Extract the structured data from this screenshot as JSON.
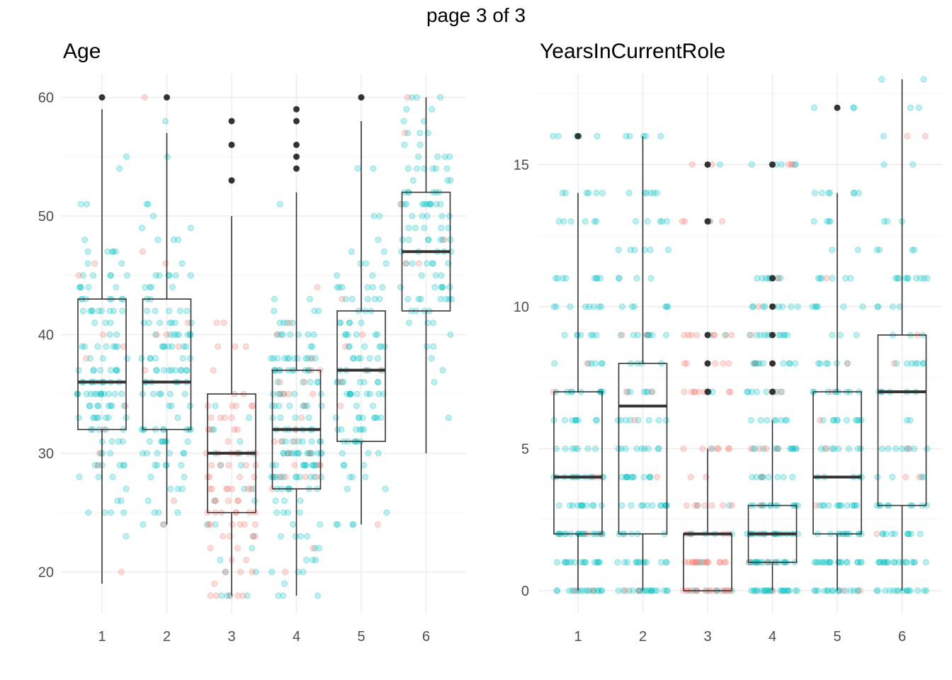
{
  "page_title": "page 3 of 3",
  "colors": {
    "group_a": "#F8766D",
    "group_b": "#00BFC4",
    "outlier": "#333333",
    "box_line": "#333333",
    "grid": "#ebebeb"
  },
  "chart_data": [
    {
      "type": "box",
      "title": "Age",
      "xlabel": "",
      "ylabel": "",
      "categories": [
        "1",
        "2",
        "3",
        "4",
        "5",
        "6"
      ],
      "y_ticks": [
        20,
        30,
        40,
        50,
        60
      ],
      "ylim": [
        16.5,
        62
      ],
      "grid": true,
      "boxes": [
        {
          "category": "1",
          "lower_whisker": 19,
          "q1": 32,
          "median": 36,
          "q3": 43,
          "upper_whisker": 59,
          "outliers": [
            60
          ]
        },
        {
          "category": "2",
          "lower_whisker": 24,
          "q1": 32,
          "median": 36,
          "q3": 43,
          "upper_whisker": 57,
          "outliers": [
            60
          ]
        },
        {
          "category": "3",
          "lower_whisker": 18,
          "q1": 25,
          "median": 30,
          "q3": 35,
          "upper_whisker": 50,
          "outliers": [
            53,
            56,
            58
          ]
        },
        {
          "category": "4",
          "lower_whisker": 18,
          "q1": 27,
          "median": 32,
          "q3": 37,
          "upper_whisker": 52,
          "outliers": [
            54,
            55,
            56,
            58,
            59
          ]
        },
        {
          "category": "5",
          "lower_whisker": 24,
          "q1": 31,
          "median": 37,
          "q3": 42,
          "upper_whisker": 58,
          "outliers": [
            60
          ]
        },
        {
          "category": "6",
          "lower_whisker": 30,
          "q1": 42,
          "median": 47,
          "q3": 52,
          "upper_whisker": 60,
          "outliers": []
        }
      ],
      "jitter": [
        {
          "category": "1",
          "min": 20,
          "max": 60,
          "center": 37,
          "spread": 7,
          "n_b": 130,
          "n_a": 10
        },
        {
          "category": "2",
          "min": 24,
          "max": 60,
          "center": 37,
          "spread": 7,
          "n_b": 120,
          "n_a": 10
        },
        {
          "category": "3",
          "min": 18,
          "max": 58,
          "center": 29,
          "spread": 6,
          "n_b": 25,
          "n_a": 80
        },
        {
          "category": "4",
          "min": 18,
          "max": 59,
          "center": 31,
          "spread": 6,
          "n_b": 150,
          "n_a": 30
        },
        {
          "category": "5",
          "min": 24,
          "max": 60,
          "center": 37,
          "spread": 7,
          "n_b": 110,
          "n_a": 8
        },
        {
          "category": "6",
          "min": 30,
          "max": 60,
          "center": 47,
          "spread": 6,
          "n_b": 100,
          "n_a": 6
        }
      ]
    },
    {
      "type": "box",
      "title": "YearsInCurrentRole",
      "xlabel": "",
      "ylabel": "",
      "categories": [
        "1",
        "2",
        "3",
        "4",
        "5",
        "6"
      ],
      "y_ticks": [
        0,
        5,
        10,
        15
      ],
      "ylim": [
        -0.8,
        18.2
      ],
      "grid": true,
      "boxes": [
        {
          "category": "1",
          "lower_whisker": 0,
          "q1": 2,
          "median": 4,
          "q3": 7,
          "upper_whisker": 14,
          "outliers": [
            16
          ]
        },
        {
          "category": "2",
          "lower_whisker": 0,
          "q1": 2,
          "median": 6.5,
          "q3": 8,
          "upper_whisker": 16,
          "outliers": []
        },
        {
          "category": "3",
          "lower_whisker": 0,
          "q1": 0,
          "median": 2,
          "q3": 2,
          "upper_whisker": 5,
          "outliers": [
            7,
            8,
            9,
            13,
            15
          ]
        },
        {
          "category": "4",
          "lower_whisker": 0,
          "q1": 1,
          "median": 2,
          "q3": 3,
          "upper_whisker": 6,
          "outliers": [
            7,
            8,
            9,
            10,
            11,
            15
          ]
        },
        {
          "category": "5",
          "lower_whisker": 0,
          "q1": 2,
          "median": 4,
          "q3": 7,
          "upper_whisker": 14,
          "outliers": [
            17
          ]
        },
        {
          "category": "6",
          "lower_whisker": 0,
          "q1": 3,
          "median": 7,
          "q3": 9,
          "upper_whisker": 18,
          "outliers": []
        }
      ],
      "jitter": [
        {
          "category": "1",
          "levels": [
            0,
            1,
            2,
            3,
            4,
            5,
            6,
            7,
            8,
            9,
            10,
            11,
            13,
            14,
            16
          ],
          "n_b": 150,
          "n_a": 8
        },
        {
          "category": "2",
          "levels": [
            0,
            1,
            2,
            3,
            4,
            5,
            6,
            7,
            8,
            9,
            10,
            11,
            12,
            13,
            14,
            16
          ],
          "n_b": 130,
          "n_a": 8
        },
        {
          "category": "3",
          "levels": [
            0,
            1,
            2,
            3,
            4,
            5,
            7,
            8,
            9,
            13,
            15
          ],
          "n_b": 25,
          "n_a": 80
        },
        {
          "category": "4",
          "levels": [
            0,
            1,
            2,
            3,
            4,
            5,
            6,
            7,
            8,
            9,
            10,
            11,
            15
          ],
          "n_b": 160,
          "n_a": 20
        },
        {
          "category": "5",
          "levels": [
            0,
            1,
            2,
            3,
            4,
            5,
            6,
            7,
            8,
            9,
            10,
            11,
            12,
            13,
            14,
            17
          ],
          "n_b": 130,
          "n_a": 8
        },
        {
          "category": "6",
          "levels": [
            0,
            1,
            2,
            3,
            4,
            5,
            6,
            7,
            8,
            9,
            10,
            11,
            12,
            13,
            15,
            16,
            17,
            18
          ],
          "n_b": 110,
          "n_a": 8
        }
      ]
    }
  ]
}
